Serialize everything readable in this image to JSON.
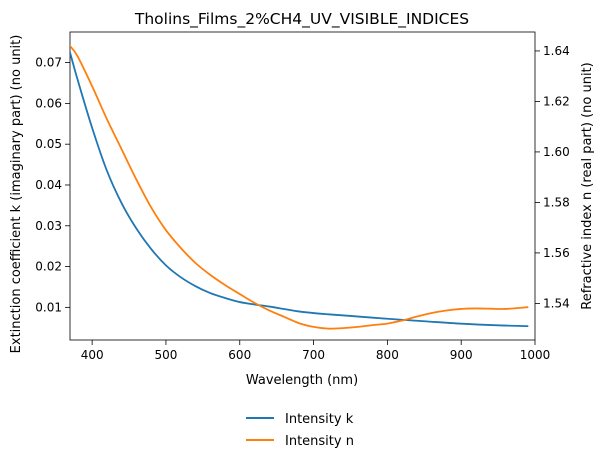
{
  "chart_data": {
    "type": "line",
    "title": "Tholins_Films_2%CH4_UV_VISIBLE_INDICES",
    "xlabel": "Wavelength (nm)",
    "ylabel_left": "Extinction coefficient k (imaginary part) (no unit)",
    "ylabel_right": "Refractive index n (real part) (no unit)",
    "xlim": [
      370,
      1000
    ],
    "ylim_left": [
      0.002,
      0.0775
    ],
    "ylim_right": [
      1.5255,
      1.6475
    ],
    "x_ticks": [
      "400",
      "500",
      "600",
      "700",
      "800",
      "900",
      "1000"
    ],
    "y_ticks_left": [
      "0.01",
      "0.02",
      "0.03",
      "0.04",
      "0.05",
      "0.06",
      "0.07"
    ],
    "y_ticks_right": [
      "1.54",
      "1.56",
      "1.58",
      "1.60",
      "1.62",
      "1.64"
    ],
    "grid": false,
    "legend_position": "bottom-center",
    "series": [
      {
        "name": "Intensity k",
        "axis": "left",
        "color": "#1f77b4",
        "x": [
          370,
          380,
          400,
          420,
          440,
          460,
          480,
          500,
          520,
          540,
          560,
          580,
          600,
          620,
          640,
          660,
          680,
          700,
          720,
          750,
          800,
          850,
          900,
          950,
          990
        ],
        "y": [
          0.0725,
          0.066,
          0.054,
          0.0435,
          0.0355,
          0.0293,
          0.0243,
          0.0203,
          0.0174,
          0.0152,
          0.0135,
          0.0123,
          0.0113,
          0.0107,
          0.0102,
          0.0096,
          0.009,
          0.0086,
          0.0083,
          0.0079,
          0.0072,
          0.0066,
          0.006,
          0.0056,
          0.0054
        ]
      },
      {
        "name": "Intensity n",
        "axis": "right",
        "color": "#ff7f0e",
        "x": [
          370,
          380,
          400,
          420,
          440,
          460,
          480,
          500,
          520,
          540,
          560,
          580,
          600,
          620,
          640,
          660,
          680,
          700,
          720,
          740,
          760,
          780,
          800,
          820,
          840,
          860,
          880,
          900,
          920,
          940,
          960,
          990
        ],
        "y": [
          1.642,
          1.638,
          1.626,
          1.613,
          1.601,
          1.589,
          1.578,
          1.569,
          1.562,
          1.556,
          1.5513,
          1.5473,
          1.5437,
          1.5402,
          1.5372,
          1.5347,
          1.5322,
          1.5307,
          1.53,
          1.5302,
          1.5307,
          1.5314,
          1.532,
          1.5332,
          1.5348,
          1.5362,
          1.5372,
          1.5378,
          1.538,
          1.5379,
          1.5378,
          1.5385
        ]
      }
    ]
  }
}
